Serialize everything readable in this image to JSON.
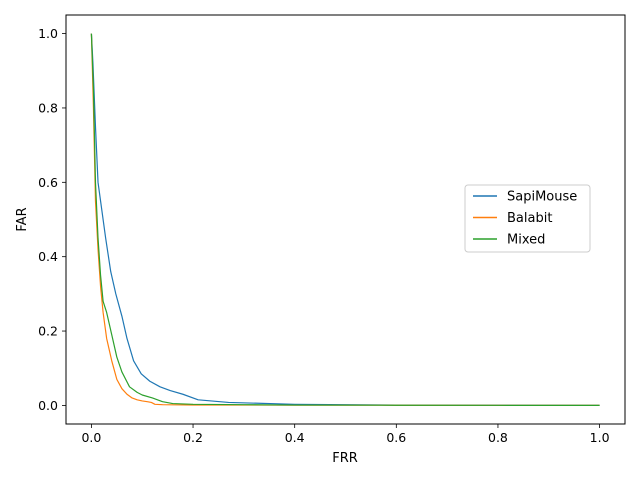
{
  "chart_data": {
    "type": "line",
    "title": "",
    "xlabel": "FRR",
    "ylabel": "FAR",
    "xlim": [
      -0.05,
      1.05
    ],
    "ylim": [
      -0.05,
      1.05
    ],
    "xticks": [
      0.0,
      0.2,
      0.4,
      0.6,
      0.8,
      1.0
    ],
    "yticks": [
      0.0,
      0.2,
      0.4,
      0.6,
      0.8,
      1.0
    ],
    "xtick_labels": [
      "0.0",
      "0.2",
      "0.4",
      "0.6",
      "0.8",
      "1.0"
    ],
    "ytick_labels": [
      "0.0",
      "0.2",
      "0.4",
      "0.6",
      "0.8",
      "1.0"
    ],
    "grid": false,
    "legend_position": "center-right",
    "series": [
      {
        "name": "SapiMouse",
        "color": "#1f77b4",
        "x": [
          0.0,
          0.003,
          0.008,
          0.013,
          0.018,
          0.028,
          0.038,
          0.048,
          0.06,
          0.07,
          0.083,
          0.098,
          0.115,
          0.135,
          0.155,
          0.18,
          0.21,
          0.27,
          0.4,
          0.6,
          0.8,
          1.0
        ],
        "y": [
          1.0,
          0.92,
          0.75,
          0.6,
          0.55,
          0.45,
          0.36,
          0.3,
          0.24,
          0.18,
          0.12,
          0.085,
          0.065,
          0.05,
          0.04,
          0.03,
          0.015,
          0.008,
          0.003,
          0.001,
          0.0005,
          0.0
        ]
      },
      {
        "name": "Balabit",
        "color": "#ff7f0e",
        "x": [
          0.0,
          0.004,
          0.008,
          0.013,
          0.018,
          0.023,
          0.03,
          0.04,
          0.05,
          0.06,
          0.07,
          0.08,
          0.09,
          0.1,
          0.11,
          0.118,
          0.125,
          0.14,
          0.2,
          0.4,
          0.6,
          0.8,
          1.0
        ],
        "y": [
          1.0,
          0.8,
          0.55,
          0.42,
          0.32,
          0.25,
          0.18,
          0.12,
          0.07,
          0.045,
          0.03,
          0.02,
          0.015,
          0.012,
          0.01,
          0.008,
          0.003,
          0.002,
          0.001,
          0.0008,
          0.0005,
          0.0002,
          0.0
        ]
      },
      {
        "name": "Mixed",
        "color": "#2ca02c",
        "x": [
          0.0,
          0.004,
          0.008,
          0.013,
          0.018,
          0.023,
          0.03,
          0.04,
          0.05,
          0.06,
          0.075,
          0.09,
          0.1,
          0.12,
          0.14,
          0.16,
          0.2,
          0.3,
          0.4,
          0.6,
          0.8,
          1.0
        ],
        "y": [
          1.0,
          0.85,
          0.6,
          0.45,
          0.35,
          0.28,
          0.25,
          0.19,
          0.13,
          0.09,
          0.05,
          0.035,
          0.028,
          0.02,
          0.01,
          0.005,
          0.003,
          0.002,
          0.001,
          0.0005,
          0.0002,
          0.0
        ]
      }
    ]
  }
}
